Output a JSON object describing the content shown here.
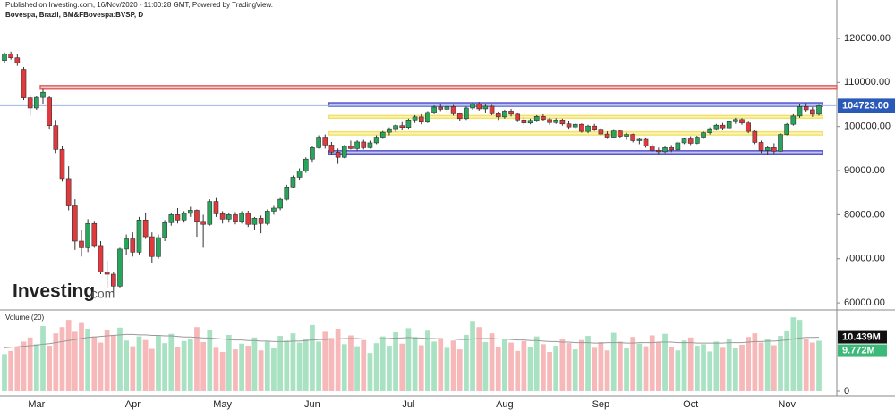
{
  "header": {
    "published": "Published on Investing.com, 16/Nov/2020 - 11:00:28 GMT, Powered by TradingView.",
    "symbol": "Bovespa, Brazil, BM&FBovespa:BVSP, D"
  },
  "brand": "Investing",
  "brand_suffix": ".com",
  "chart_data": [
    {
      "type": "candlestick",
      "categories": [
        null,
        null,
        null,
        null,
        null,
        "Mar",
        null,
        null,
        null,
        null,
        null,
        null,
        null,
        null,
        null,
        null,
        null,
        null,
        null,
        null,
        "Apr",
        null,
        null,
        null,
        null,
        null,
        null,
        null,
        null,
        null,
        null,
        null,
        null,
        null,
        "May",
        null,
        null,
        null,
        null,
        null,
        null,
        null,
        null,
        null,
        null,
        null,
        null,
        null,
        "Jun",
        null,
        null,
        null,
        null,
        null,
        null,
        null,
        null,
        null,
        null,
        null,
        null,
        null,
        null,
        "Jul",
        null,
        null,
        null,
        null,
        null,
        null,
        null,
        null,
        null,
        null,
        null,
        null,
        null,
        null,
        "Aug",
        null,
        null,
        null,
        null,
        null,
        null,
        null,
        null,
        null,
        null,
        null,
        null,
        null,
        null,
        "Sep",
        null,
        null,
        null,
        null,
        null,
        null,
        null,
        null,
        null,
        null,
        null,
        null,
        null,
        "Oct",
        null,
        null,
        null,
        null,
        null,
        null,
        null,
        null,
        null,
        null,
        null,
        null,
        null,
        null,
        "Nov",
        null,
        null,
        null,
        null,
        null
      ],
      "open": [
        115000,
        116500,
        115600,
        113000,
        106500,
        104200,
        106600,
        106500,
        100200,
        94800,
        88200,
        82000,
        74000,
        72500,
        78000,
        73000,
        67000,
        66500,
        63800,
        72200,
        74500,
        71500,
        78800,
        75000,
        70500,
        74800,
        78200,
        80000,
        78800,
        80300,
        81000,
        78500,
        77800,
        83000,
        80200,
        79000,
        80000,
        78500,
        80300,
        77800,
        79200,
        78000,
        80800,
        81500,
        83500,
        86300,
        88500,
        89900,
        92600,
        95200,
        97600,
        95800,
        94200,
        93000,
        95500,
        95000,
        96500,
        95200,
        96300,
        97600,
        98700,
        99500,
        100200,
        99800,
        101500,
        102200,
        101000,
        103200,
        104400,
        103900,
        104500,
        102900,
        101800,
        104200,
        105100,
        104000,
        104600,
        102900,
        102200,
        103500,
        102800,
        101500,
        100800,
        101400,
        102300,
        101600,
        100900,
        101500,
        100600,
        99900,
        100500,
        98900,
        100100,
        99400,
        98300,
        97600,
        99000,
        97800,
        98200,
        96800,
        97100,
        95600,
        94600,
        94300,
        95200,
        94700,
        96300,
        97200,
        96200,
        97600,
        98600,
        99500,
        100300,
        99700,
        101100,
        101600,
        100800,
        98900,
        96400,
        94600,
        95200,
        94400,
        98200,
        100500,
        102400,
        104500,
        103800,
        102800
      ],
      "high": [
        116800,
        117000,
        116400,
        113500,
        107200,
        107000,
        108500,
        107000,
        101500,
        95500,
        91000,
        83500,
        76500,
        79000,
        78600,
        74000,
        69500,
        67000,
        72500,
        75500,
        76000,
        79500,
        80500,
        76000,
        75500,
        78800,
        80500,
        81500,
        80800,
        81800,
        81200,
        80000,
        83500,
        83800,
        80800,
        80500,
        80600,
        80800,
        80900,
        79500,
        79800,
        81200,
        82000,
        83800,
        86800,
        88900,
        90500,
        93000,
        95500,
        98000,
        98200,
        96500,
        95000,
        95800,
        96800,
        96900,
        97000,
        96800,
        98000,
        99000,
        99800,
        100500,
        101000,
        101800,
        102600,
        102800,
        103500,
        104800,
        105000,
        104800,
        104900,
        103200,
        104500,
        105500,
        105600,
        105000,
        104900,
        103400,
        103800,
        104000,
        103200,
        102200,
        101800,
        102600,
        102800,
        102000,
        101900,
        101800,
        101200,
        100800,
        100700,
        100400,
        100600,
        99800,
        98900,
        99400,
        99200,
        98600,
        98400,
        97500,
        97300,
        96000,
        95200,
        95600,
        95800,
        96600,
        97500,
        97800,
        97900,
        98900,
        99800,
        100600,
        100800,
        101400,
        102000,
        101900,
        101100,
        99300,
        96800,
        95600,
        96200,
        98500,
        100800,
        102800,
        105000,
        105300,
        104400,
        104900
      ],
      "low": [
        114500,
        115200,
        113800,
        106000,
        102500,
        103800,
        105000,
        99500,
        94000,
        87500,
        81000,
        72000,
        70500,
        71500,
        72500,
        66500,
        63500,
        62500,
        63500,
        70800,
        70500,
        71000,
        74500,
        69000,
        70000,
        74000,
        77500,
        78000,
        78200,
        79500,
        75000,
        72500,
        77500,
        79500,
        78000,
        78200,
        77800,
        78000,
        77200,
        76500,
        75800,
        77600,
        80000,
        81000,
        83200,
        86000,
        87800,
        89500,
        92000,
        95000,
        95000,
        93500,
        91500,
        92800,
        94800,
        94500,
        94800,
        95000,
        96000,
        97200,
        98000,
        98800,
        99200,
        99500,
        100800,
        100500,
        100800,
        102800,
        103500,
        103000,
        102500,
        101200,
        101500,
        103800,
        103600,
        103200,
        102600,
        101500,
        101800,
        102300,
        101000,
        100200,
        100500,
        101000,
        101200,
        100400,
        100600,
        100200,
        99500,
        99600,
        98600,
        98500,
        99000,
        98000,
        97200,
        97400,
        97500,
        97000,
        96400,
        96000,
        95200,
        94200,
        93800,
        94000,
        94200,
        94500,
        96000,
        95800,
        96000,
        97200,
        98200,
        99100,
        99200,
        99500,
        100600,
        100400,
        98500,
        96000,
        94000,
        93600,
        93900,
        94200,
        98000,
        100200,
        102000,
        103400,
        102200,
        102500
      ],
      "close": [
        116500,
        115600,
        114500,
        106500,
        104200,
        106600,
        107800,
        100200,
        94800,
        88200,
        82000,
        74000,
        72500,
        78000,
        73000,
        67000,
        66500,
        63800,
        72200,
        74500,
        71500,
        78800,
        75000,
        70500,
        74800,
        78200,
        80000,
        78800,
        80300,
        81000,
        78500,
        77800,
        83000,
        80200,
        79000,
        80000,
        78500,
        80300,
        77800,
        79200,
        78000,
        80800,
        81500,
        83500,
        86300,
        88500,
        89900,
        92600,
        95200,
        97600,
        95800,
        94200,
        93000,
        95500,
        95000,
        96500,
        95200,
        96300,
        97600,
        98700,
        99500,
        100200,
        99800,
        101500,
        102200,
        101000,
        103200,
        104400,
        103900,
        104500,
        102900,
        101800,
        104200,
        105100,
        104000,
        104600,
        102900,
        102200,
        103500,
        102800,
        101500,
        100800,
        101400,
        102300,
        101600,
        100900,
        101500,
        100600,
        99900,
        100500,
        98900,
        100100,
        99400,
        98300,
        97600,
        99000,
        97800,
        98200,
        96800,
        97100,
        95600,
        94600,
        94300,
        95200,
        94700,
        96300,
        97200,
        96200,
        97600,
        98600,
        99500,
        100300,
        99700,
        101100,
        101600,
        100800,
        98900,
        96400,
        94600,
        95200,
        94400,
        98200,
        100500,
        102400,
        104500,
        103800,
        102800,
        104723
      ],
      "up_color": "#26a65b",
      "down_color": "#e0393e",
      "ylim": [
        58600,
        127900
      ],
      "yticks": [
        {
          "value": 60000,
          "label": "60000.00"
        },
        {
          "value": 70000,
          "label": "70000.00"
        },
        {
          "value": 80000,
          "label": "80000.00"
        },
        {
          "value": 90000,
          "label": "90000.00"
        },
        {
          "value": 100000,
          "label": "100000.00"
        },
        {
          "value": 110000,
          "label": "110000.00"
        },
        {
          "value": 120000,
          "label": "120000.00"
        }
      ],
      "last_price": {
        "value": 104723,
        "label": "104723.00"
      },
      "zones": [
        {
          "low": 108500,
          "high": 109300,
          "from": 6,
          "fill": "#f4cccc",
          "stroke": "#e06666"
        },
        {
          "low": 104600,
          "high": 105400,
          "from": 51,
          "fill": "#c5c5f0",
          "stroke": "#5555cc"
        },
        {
          "low": 101900,
          "high": 102500,
          "from": 51,
          "fill": "#fdf6b0",
          "stroke": "#efe070"
        },
        {
          "low": 98100,
          "high": 98800,
          "from": 51,
          "fill": "#fdf6b0",
          "stroke": "#efe070"
        },
        {
          "low": 93800,
          "high": 94500,
          "from": 51,
          "fill": "#c5c5f0",
          "stroke": "#5555cc"
        }
      ]
    },
    {
      "type": "volume",
      "title": "Volume (20)",
      "values": [
        7.2,
        7.8,
        8.5,
        9.6,
        10.4,
        9.1,
        12.6,
        8.8,
        11.2,
        12.4,
        13.8,
        11.5,
        13.2,
        12.1,
        10.6,
        9.4,
        11.8,
        10.9,
        12.3,
        9.8,
        8.7,
        10.6,
        9.9,
        8.2,
        10.8,
        9.3,
        11.1,
        8.6,
        9.7,
        10.2,
        12.4,
        9.5,
        11.8,
        8.4,
        7.6,
        10.9,
        8.1,
        9.2,
        8.8,
        10.4,
        7.9,
        9.6,
        8.3,
        10.7,
        9.8,
        11.2,
        9.4,
        10.1,
        12.8,
        9.6,
        11.5,
        10.3,
        12.1,
        9.1,
        10.8,
        8.7,
        9.9,
        7.4,
        9.3,
        10.6,
        8.8,
        11.4,
        9.2,
        12.2,
        10.5,
        8.9,
        11.7,
        9.6,
        10.3,
        8.4,
        9.8,
        8.1,
        10.9,
        13.6,
        12.4,
        9.5,
        11.2,
        8.6,
        10.1,
        9.4,
        7.8,
        9.7,
        8.5,
        10.6,
        9.1,
        7.6,
        8.8,
        10.2,
        9.3,
        8.1,
        9.9,
        10.7,
        8.4,
        9.5,
        7.9,
        11.3,
        9.6,
        8.3,
        10.5,
        9.2,
        8.7,
        10.8,
        9.4,
        11.1,
        8.6,
        7.9,
        9.8,
        10.4,
        8.8,
        9.1,
        7.7,
        9.6,
        8.4,
        10.2,
        8.3,
        9.0,
        10.5,
        11.2,
        9.4,
        10.1,
        8.9,
        10.7,
        11.6,
        14.3,
        13.8,
        10.2,
        9.4,
        9.772
      ],
      "ma_values": [
        8.4,
        8.5,
        8.6,
        8.7,
        8.8,
        8.9,
        9.1,
        9.2,
        9.4,
        9.6,
        9.8,
        10.0,
        10.2,
        10.4,
        10.5,
        10.6,
        10.7,
        10.8,
        10.9,
        11.0,
        11.0,
        10.9,
        10.9,
        10.8,
        10.8,
        10.7,
        10.7,
        10.6,
        10.5,
        10.5,
        10.4,
        10.3,
        10.3,
        10.2,
        10.1,
        10.0,
        9.9,
        9.9,
        9.8,
        9.8,
        9.7,
        9.7,
        9.6,
        9.6,
        9.6,
        9.7,
        9.7,
        9.8,
        9.9,
        10.0,
        10.0,
        10.1,
        10.1,
        10.2,
        10.2,
        10.2,
        10.1,
        10.1,
        10.1,
        10.2,
        10.2,
        10.3,
        10.3,
        10.4,
        10.3,
        10.3,
        10.2,
        10.2,
        10.1,
        10.1,
        10.1,
        10.0,
        10.0,
        10.1,
        10.2,
        10.2,
        10.2,
        10.1,
        10.1,
        10.0,
        9.9,
        9.9,
        9.8,
        9.8,
        9.7,
        9.6,
        9.6,
        9.5,
        9.5,
        9.4,
        9.4,
        9.4,
        9.3,
        9.3,
        9.4,
        9.4,
        9.4,
        9.3,
        9.3,
        9.4,
        9.4,
        9.4,
        9.5,
        9.5,
        9.5,
        9.4,
        9.4,
        9.4,
        9.3,
        9.3,
        9.3,
        9.3,
        9.3,
        9.4,
        9.4,
        9.4,
        9.5,
        9.6,
        9.6,
        9.7,
        9.7,
        9.8,
        9.9,
        10.1,
        10.3,
        10.4,
        10.4,
        10.439
      ],
      "up_color": "#a8e2c2",
      "down_color": "#f6b8b8",
      "ma_color": "#999999",
      "ylim": [
        0,
        15.2
      ],
      "yticks": [
        0
      ],
      "last_ma": {
        "value": 10.439,
        "label": "10.439M"
      },
      "last_volume": {
        "value": 9.772,
        "label": "9.772M"
      }
    }
  ]
}
